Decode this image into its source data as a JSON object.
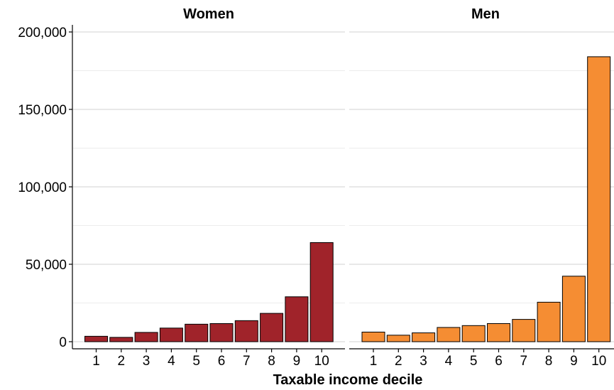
{
  "chart_data": {
    "type": "bar",
    "xlabel": "Taxable income decile",
    "ylabel": "",
    "ylim": [
      0,
      205000
    ],
    "yticks": [
      0,
      50000,
      100000,
      150000,
      200000
    ],
    "ytick_labels": [
      "0",
      "50,000",
      "100,000",
      "150,000",
      "200,000"
    ],
    "categories": [
      "1",
      "2",
      "3",
      "4",
      "5",
      "6",
      "7",
      "8",
      "9",
      "10"
    ],
    "grid": "horizontal",
    "panels": [
      {
        "title": "Women",
        "color": "#a0232a",
        "values": [
          3500,
          2800,
          6000,
          8800,
          11300,
          11700,
          13600,
          18300,
          29000,
          64000
        ]
      },
      {
        "title": "Men",
        "color": "#f58d33",
        "values": [
          6200,
          4200,
          5700,
          9200,
          10400,
          11700,
          14400,
          25500,
          42300,
          184000
        ]
      }
    ]
  }
}
